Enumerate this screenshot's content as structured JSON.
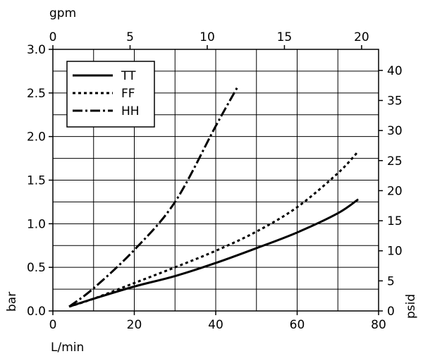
{
  "chart_data": {
    "type": "line",
    "x_bottom": {
      "label": "L/min",
      "range": [
        0,
        80
      ],
      "ticks": [
        "0",
        "20",
        "40",
        "60",
        "80"
      ]
    },
    "x_top": {
      "label": "gpm",
      "range": [
        0,
        21.1
      ],
      "ticks": [
        "0",
        "5",
        "10",
        "15",
        "20"
      ]
    },
    "y_left": {
      "label": "bar",
      "range": [
        0,
        3.0
      ],
      "ticks": [
        "0.0",
        "0.5",
        "1.0",
        "1.5",
        "2.0",
        "2.5",
        "3.0"
      ]
    },
    "y_right": {
      "label": "psid",
      "range": [
        0,
        43.5
      ],
      "ticks": [
        "0",
        "5",
        "10",
        "15",
        "20",
        "25",
        "30",
        "35",
        "40"
      ]
    },
    "grid": true,
    "legend_position": "top-left",
    "series": [
      {
        "name": "TT",
        "style": "solid",
        "x": [
          4,
          10,
          20,
          30,
          40,
          50,
          60,
          70,
          75
        ],
        "y": [
          0.05,
          0.14,
          0.28,
          0.4,
          0.55,
          0.72,
          0.9,
          1.12,
          1.28
        ]
      },
      {
        "name": "FF",
        "style": "dotted",
        "x": [
          4,
          10,
          20,
          30,
          40,
          50,
          60,
          70,
          75
        ],
        "y": [
          0.05,
          0.14,
          0.32,
          0.5,
          0.69,
          0.91,
          1.19,
          1.58,
          1.83
        ]
      },
      {
        "name": "HH",
        "style": "dashdot",
        "x": [
          4,
          10,
          20,
          30,
          40,
          45.5
        ],
        "y": [
          0.05,
          0.26,
          0.7,
          1.25,
          2.12,
          2.58
        ]
      }
    ]
  }
}
